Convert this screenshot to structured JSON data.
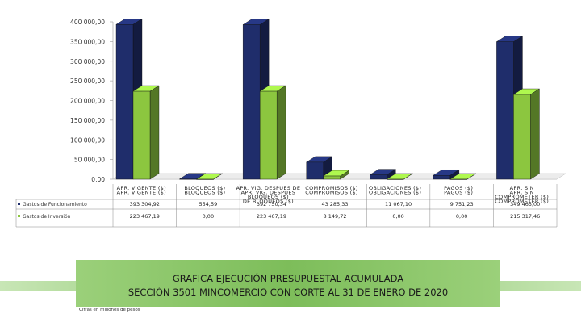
{
  "chart_data": {
    "type": "bar",
    "style": "3d-clustered",
    "ylim": [
      0,
      400000
    ],
    "yticks": [
      "400 000,00",
      "350 000,00",
      "300 000,00",
      "250 000,00",
      "200 000,00",
      "150 000,00",
      "100 000,00",
      "50 000,00",
      "0,00"
    ],
    "categories": [
      [
        "APR. VIGENTE ($)",
        "APR. VIGENTE ($)"
      ],
      [
        "BLOQUEOS ($)",
        "BLOQUEOS ($)"
      ],
      [
        "APR. VIG. DESPUES DE",
        "APR. VIG. DESPUES",
        "BLOQUEOS ($)",
        "DE BLOQUEOS ($)"
      ],
      [
        "COMPROMISOS ($)",
        "COMPROMISOS ($)"
      ],
      [
        "OBLIGACIONES ($)",
        "OBLIGACIONES ($)"
      ],
      [
        "PAGOS ($)",
        "PAGOS ($)"
      ],
      [
        "APR. SIN",
        "APR. SIN",
        "COMPROMETER ($)",
        "COMPROMETER ($)"
      ]
    ],
    "series": [
      {
        "name": "Gastos de Funcionamiento",
        "color": "#1f2d6b",
        "values": [
          393304.92,
          554.59,
          392750.34,
          43285.33,
          11067.1,
          9751.23,
          349465.0
        ],
        "labels": [
          "393 304,92",
          "554,59",
          "392 750,34",
          "43 285,33",
          "11 067,10",
          "9 751,23",
          "349 465,00"
        ]
      },
      {
        "name": "Gastos de Inversión",
        "color": "#8cc63f",
        "values": [
          223467.19,
          0.0,
          223467.19,
          8149.72,
          0.0,
          0.0,
          215317.46
        ],
        "labels": [
          "223 467,19",
          "0,00",
          "223 467,19",
          "8 149,72",
          "0,00",
          "0,00",
          "215 317,46"
        ]
      }
    ],
    "legend": "table-left",
    "grid": false
  },
  "title_lines": [
    "GRAFICA EJECUCIÓN PRESUPUESTAL ACUMULADA",
    "SECCIÓN 3501 MINCOMERCIO CON CORTE AL 31 DE ENERO DE 2020"
  ],
  "note": "Cifras en millones de pesos"
}
